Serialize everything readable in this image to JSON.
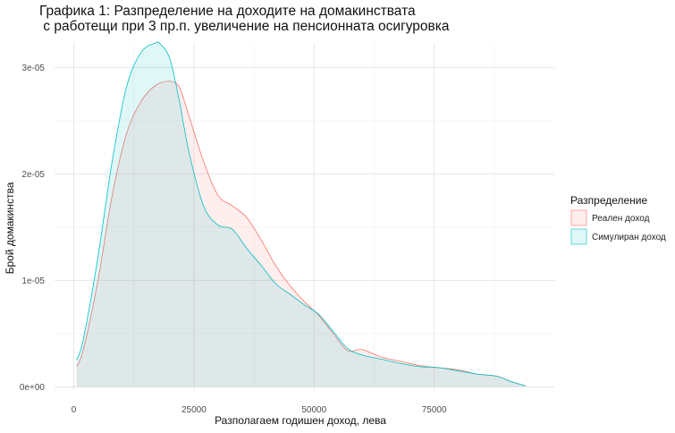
{
  "chart_data": {
    "type": "area",
    "title_line1": "Графика 1: Разпределение на доходите на домакинствата",
    "title_line2": " с работещи при 3 пр.п. увеличение на пенсионната осигуровка",
    "xlabel": "Разполагаем годишен доход, лева",
    "ylabel": "Брой домакинства",
    "xlim": [
      -4000,
      100000
    ],
    "ylim": [
      -3e-07,
      3.23e-05
    ],
    "x_ticks": [
      0,
      25000,
      50000,
      75000
    ],
    "x_tick_labels": [
      "0",
      "25000",
      "50000",
      "75000"
    ],
    "y_ticks": [
      0,
      1e-05,
      2e-05,
      3e-05
    ],
    "y_tick_labels": [
      "0e+00",
      "1e-05",
      "2e-05",
      "3e-05"
    ],
    "grid": true,
    "legend": {
      "title": "Разпределение",
      "position": "right",
      "entries": [
        "Реален доход",
        "Симулиран доход"
      ]
    },
    "series": [
      {
        "name": "Реален доход",
        "fill": "#F8766D",
        "x": [
          600,
          2000,
          5000,
          8000,
          11000,
          14000,
          17000,
          20000,
          22000,
          24000,
          27000,
          30000,
          33000,
          36000,
          39000,
          42000,
          45000,
          48000,
          51000,
          54000,
          57000,
          60000,
          64000,
          68000,
          72000,
          76000,
          80000,
          84000,
          88000,
          91000,
          94000
        ],
        "y": [
          1.9e-06,
          3.5e-06,
          9.9e-06,
          1.8e-05,
          2.38e-05,
          2.68e-05,
          2.83e-05,
          2.87e-05,
          2.81e-05,
          2.54e-05,
          2.12e-05,
          1.8e-05,
          1.7e-05,
          1.59e-05,
          1.38e-05,
          1.14e-05,
          9.5e-06,
          8e-06,
          6.7e-06,
          5e-06,
          3.4e-06,
          3.5e-06,
          2.8e-06,
          2.4e-06,
          2e-06,
          1.8e-06,
          1.6e-06,
          1.2e-06,
          1e-06,
          5e-07,
          1e-07
        ]
      },
      {
        "name": "Симулиран доход",
        "fill": "#00BFC4",
        "x": [
          600,
          2000,
          5000,
          8000,
          11000,
          14000,
          17000,
          18000,
          20000,
          22000,
          24000,
          27000,
          30000,
          33000,
          36000,
          39000,
          42000,
          45000,
          48000,
          51000,
          54000,
          57000,
          60000,
          64000,
          68000,
          72000,
          76000,
          80000,
          84000,
          88000,
          91000,
          94000
        ],
        "y": [
          2.5e-06,
          4.5e-06,
          1.21e-05,
          2.12e-05,
          2.82e-05,
          3.14e-05,
          3.23e-05,
          3.22e-05,
          3.08e-05,
          2.68e-05,
          2.2e-05,
          1.7e-05,
          1.52e-05,
          1.48e-05,
          1.3e-05,
          1.14e-05,
          9.7e-06,
          8.7e-06,
          7.7e-06,
          6.8e-06,
          5.2e-06,
          3.6e-06,
          3e-06,
          2.6e-06,
          2.2e-06,
          1.9e-06,
          1.8e-06,
          1.5e-06,
          1.2e-06,
          1e-06,
          5e-07,
          1e-07
        ]
      }
    ]
  }
}
